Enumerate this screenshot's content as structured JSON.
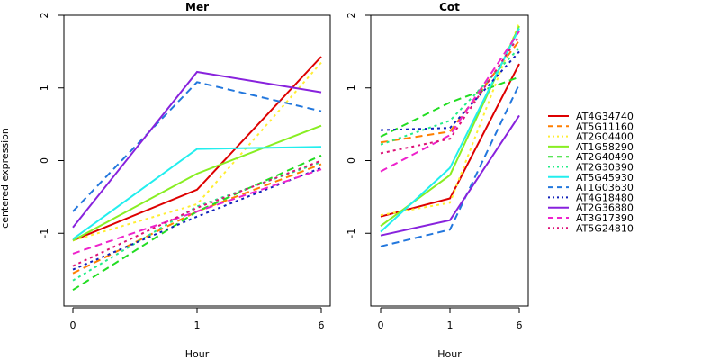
{
  "figure": {
    "ylabel": "centered expression",
    "xlabel": "Hour"
  },
  "chart_data": [
    {
      "type": "line",
      "title": "Mer",
      "xlabel": "Hour",
      "ylabel": "centered expression",
      "categories": [
        "0",
        "1",
        "6"
      ],
      "ylim": [
        -2,
        2
      ],
      "yticks": [
        "-1",
        "0",
        "1",
        "2"
      ],
      "series": [
        {
          "name": "AT4G34740",
          "values": [
            -1.1,
            -0.4,
            1.43
          ]
        },
        {
          "name": "AT5G11160",
          "values": [
            -1.55,
            -0.7,
            -0.05
          ]
        },
        {
          "name": "AT2G04400",
          "values": [
            -1.1,
            -0.6,
            1.35
          ]
        },
        {
          "name": "AT1G58290",
          "values": [
            -1.1,
            -0.18,
            0.48
          ]
        },
        {
          "name": "AT2G40490",
          "values": [
            -1.78,
            -0.7,
            0.07
          ]
        },
        {
          "name": "AT2G30390",
          "values": [
            -1.65,
            -0.63,
            -0.02
          ]
        },
        {
          "name": "AT5G45930",
          "values": [
            -1.08,
            0.16,
            0.19
          ]
        },
        {
          "name": "AT1G03630",
          "values": [
            -0.7,
            1.08,
            0.68
          ]
        },
        {
          "name": "AT4G18480",
          "values": [
            -1.5,
            -0.77,
            -0.1
          ]
        },
        {
          "name": "AT2G36880",
          "values": [
            -0.92,
            1.22,
            0.94
          ]
        },
        {
          "name": "AT3G17390",
          "values": [
            -1.28,
            -0.7,
            -0.12
          ]
        },
        {
          "name": "AT5G24810",
          "values": [
            -1.45,
            -0.65,
            0.0
          ]
        }
      ]
    },
    {
      "type": "line",
      "title": "Cot",
      "xlabel": "Hour",
      "ylabel": "",
      "categories": [
        "0",
        "1",
        "6"
      ],
      "ylim": [
        -2,
        2
      ],
      "yticks": [
        "-1",
        "0",
        "1",
        "2"
      ],
      "series": [
        {
          "name": "AT4G34740",
          "values": [
            -0.77,
            -0.52,
            1.33
          ]
        },
        {
          "name": "AT5G11160",
          "values": [
            0.25,
            0.4,
            1.65
          ]
        },
        {
          "name": "AT2G04400",
          "values": [
            -0.75,
            -0.58,
            1.9
          ]
        },
        {
          "name": "AT1G58290",
          "values": [
            -0.9,
            -0.2,
            1.85
          ]
        },
        {
          "name": "AT2G40490",
          "values": [
            0.33,
            0.8,
            1.15
          ]
        },
        {
          "name": "AT2G30390",
          "values": [
            0.22,
            0.55,
            1.55
          ]
        },
        {
          "name": "AT5G45930",
          "values": [
            -0.98,
            -0.1,
            1.82
          ]
        },
        {
          "name": "AT1G03630",
          "values": [
            -1.18,
            -0.95,
            1.05
          ]
        },
        {
          "name": "AT4G18480",
          "values": [
            0.42,
            0.45,
            1.5
          ]
        },
        {
          "name": "AT2G36880",
          "values": [
            -1.03,
            -0.82,
            0.62
          ]
        },
        {
          "name": "AT3G17390",
          "values": [
            -0.15,
            0.35,
            1.78
          ]
        },
        {
          "name": "AT5G24810",
          "values": [
            0.1,
            0.3,
            1.72
          ]
        }
      ]
    }
  ],
  "legend": {
    "placement": "right",
    "items": [
      {
        "name": "AT4G34740",
        "color": "#dd0000",
        "dash": "solid",
        "width": 2
      },
      {
        "name": "AT5G11160",
        "color": "#ff7f00",
        "dash": "dashed",
        "width": 2
      },
      {
        "name": "AT2G04400",
        "color": "#ffee33",
        "dash": "dotted",
        "width": 2
      },
      {
        "name": "AT1G58290",
        "color": "#88ee22",
        "dash": "solid",
        "width": 2
      },
      {
        "name": "AT2G40490",
        "color": "#22dd22",
        "dash": "dashed",
        "width": 2
      },
      {
        "name": "AT2G30390",
        "color": "#22ee88",
        "dash": "dotted",
        "width": 2
      },
      {
        "name": "AT5G45930",
        "color": "#22eeee",
        "dash": "solid",
        "width": 2
      },
      {
        "name": "AT1G03630",
        "color": "#2277dd",
        "dash": "dashed",
        "width": 2
      },
      {
        "name": "AT4G18480",
        "color": "#1122bb",
        "dash": "dotted",
        "width": 2
      },
      {
        "name": "AT2G36880",
        "color": "#8822dd",
        "dash": "solid",
        "width": 2
      },
      {
        "name": "AT3G17390",
        "color": "#ee22cc",
        "dash": "dashed",
        "width": 2
      },
      {
        "name": "AT5G24810",
        "color": "#dd1177",
        "dash": "dotted",
        "width": 2
      }
    ]
  }
}
